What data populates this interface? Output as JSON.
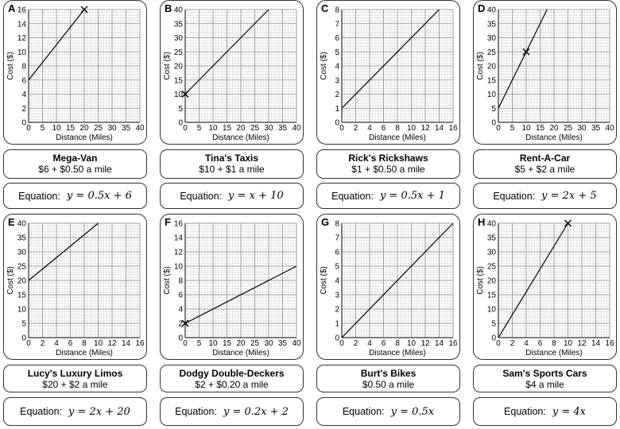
{
  "x_axis_label": "Distance (Miles)",
  "y_axis_label": "Cost ($)",
  "equation_label": "Equation:",
  "cards": [
    {
      "letter": "A",
      "name": "Mega-Van",
      "price": "$6 + $0.50 a mile",
      "equation": "y = 0.5x + 6",
      "chart_data": {
        "type": "line",
        "xlabel": "Distance (Miles)",
        "ylabel": "Cost ($)",
        "xlim": [
          0,
          40
        ],
        "ylim": [
          0,
          16
        ],
        "xticks": [
          0,
          5,
          10,
          15,
          20,
          25,
          30,
          35,
          40
        ],
        "yticks": [
          0,
          2,
          4,
          6,
          8,
          10,
          12,
          14,
          16
        ],
        "series": [
          {
            "name": "Mega-Van",
            "x": [
              0,
              20
            ],
            "y": [
              6,
              16
            ]
          }
        ],
        "cross_marker": [
          20,
          16
        ],
        "grid": true
      }
    },
    {
      "letter": "B",
      "name": "Tina's Taxis",
      "price": "$10 + $1 a mile",
      "equation": "y = x + 10",
      "chart_data": {
        "type": "line",
        "xlabel": "Distance (Miles)",
        "ylabel": "Cost ($)",
        "xlim": [
          0,
          40
        ],
        "ylim": [
          0,
          40
        ],
        "xticks": [
          0,
          5,
          10,
          15,
          20,
          25,
          30,
          35,
          40
        ],
        "yticks": [
          0,
          5,
          10,
          15,
          20,
          25,
          30,
          35,
          40
        ],
        "series": [
          {
            "name": "Tina's Taxis",
            "x": [
              0,
              30
            ],
            "y": [
              10,
              40
            ]
          }
        ],
        "cross_marker": [
          0,
          10
        ],
        "grid": true
      }
    },
    {
      "letter": "C",
      "name": "Rick's Rickshaws",
      "price": "$1 + $0.50 a mile",
      "equation": "y = 0.5x + 1",
      "chart_data": {
        "type": "line",
        "xlabel": "Distance (Miles)",
        "ylabel": "Cost ($)",
        "xlim": [
          0,
          16
        ],
        "ylim": [
          0,
          8
        ],
        "xticks": [
          0,
          2,
          4,
          6,
          8,
          10,
          12,
          14,
          16
        ],
        "yticks": [
          0,
          1,
          2,
          3,
          4,
          5,
          6,
          7,
          8
        ],
        "series": [
          {
            "name": "Rick's Rickshaws",
            "x": [
              0,
              14
            ],
            "y": [
              1,
              8
            ]
          }
        ],
        "cross_marker": null,
        "grid": true
      }
    },
    {
      "letter": "D",
      "name": "Rent-A-Car",
      "price": "$5 + $2 a mile",
      "equation": "y = 2x + 5",
      "chart_data": {
        "type": "line",
        "xlabel": "Distance (Miles)",
        "ylabel": "Cost ($)",
        "xlim": [
          0,
          40
        ],
        "ylim": [
          0,
          40
        ],
        "xticks": [
          0,
          5,
          10,
          15,
          20,
          25,
          30,
          35,
          40
        ],
        "yticks": [
          0,
          5,
          10,
          15,
          20,
          25,
          30,
          35,
          40
        ],
        "series": [
          {
            "name": "Rent-A-Car",
            "x": [
              0,
              17.5
            ],
            "y": [
              5,
              40
            ]
          }
        ],
        "cross_marker": [
          10,
          25
        ],
        "grid": true
      }
    },
    {
      "letter": "E",
      "name": "Lucy's Luxury Limos",
      "price": "$20 + $2 a mile",
      "equation": "y = 2x + 20",
      "chart_data": {
        "type": "line",
        "xlabel": "Distance (Miles)",
        "ylabel": "Cost ($)",
        "xlim": [
          0,
          16
        ],
        "ylim": [
          0,
          40
        ],
        "xticks": [
          0,
          2,
          4,
          6,
          8,
          10,
          12,
          14,
          16
        ],
        "yticks": [
          0,
          5,
          10,
          15,
          20,
          25,
          30,
          35,
          40
        ],
        "series": [
          {
            "name": "Lucy's Luxury Limos",
            "x": [
              0,
              10
            ],
            "y": [
              20,
              40
            ]
          }
        ],
        "cross_marker": null,
        "grid": true
      }
    },
    {
      "letter": "F",
      "name": "Dodgy Double-Deckers",
      "price": "$2 + $0.20 a mile",
      "equation": "y = 0.2x + 2",
      "chart_data": {
        "type": "line",
        "xlabel": "Distance (Miles)",
        "ylabel": "Cost ($)",
        "xlim": [
          0,
          40
        ],
        "ylim": [
          0,
          16
        ],
        "xticks": [
          0,
          5,
          10,
          15,
          20,
          25,
          30,
          35,
          40
        ],
        "yticks": [
          0,
          2,
          4,
          6,
          8,
          10,
          12,
          14,
          16
        ],
        "series": [
          {
            "name": "Dodgy Double-Deckers",
            "x": [
              0,
              40
            ],
            "y": [
              2,
              10
            ]
          }
        ],
        "cross_marker": [
          0,
          2
        ],
        "grid": true
      }
    },
    {
      "letter": "G",
      "name": "Burt's Bikes",
      "price": "$0.50 a mile",
      "equation": "y = 0.5x",
      "chart_data": {
        "type": "line",
        "xlabel": "Distance (Miles)",
        "ylabel": "Cost ($)",
        "xlim": [
          0,
          16
        ],
        "ylim": [
          0,
          8
        ],
        "xticks": [
          0,
          2,
          4,
          6,
          8,
          10,
          12,
          14,
          16
        ],
        "yticks": [
          0,
          1,
          2,
          3,
          4,
          5,
          6,
          7,
          8
        ],
        "series": [
          {
            "name": "Burt's Bikes",
            "x": [
              0,
              16
            ],
            "y": [
              0,
              8
            ]
          }
        ],
        "cross_marker": null,
        "grid": true
      }
    },
    {
      "letter": "H",
      "name": "Sam's Sports Cars",
      "price": "$4 a mile",
      "equation": "y = 4x",
      "chart_data": {
        "type": "line",
        "xlabel": "Distance (Miles)",
        "ylabel": "Cost ($)",
        "xlim": [
          0,
          16
        ],
        "ylim": [
          0,
          40
        ],
        "xticks": [
          0,
          2,
          4,
          6,
          8,
          10,
          12,
          14,
          16
        ],
        "yticks": [
          0,
          5,
          10,
          15,
          20,
          25,
          30,
          35,
          40
        ],
        "series": [
          {
            "name": "Sam's Sports Cars",
            "x": [
              0,
              10
            ],
            "y": [
              0,
              40
            ]
          }
        ],
        "cross_marker": [
          10,
          40
        ],
        "grid": true
      }
    }
  ]
}
